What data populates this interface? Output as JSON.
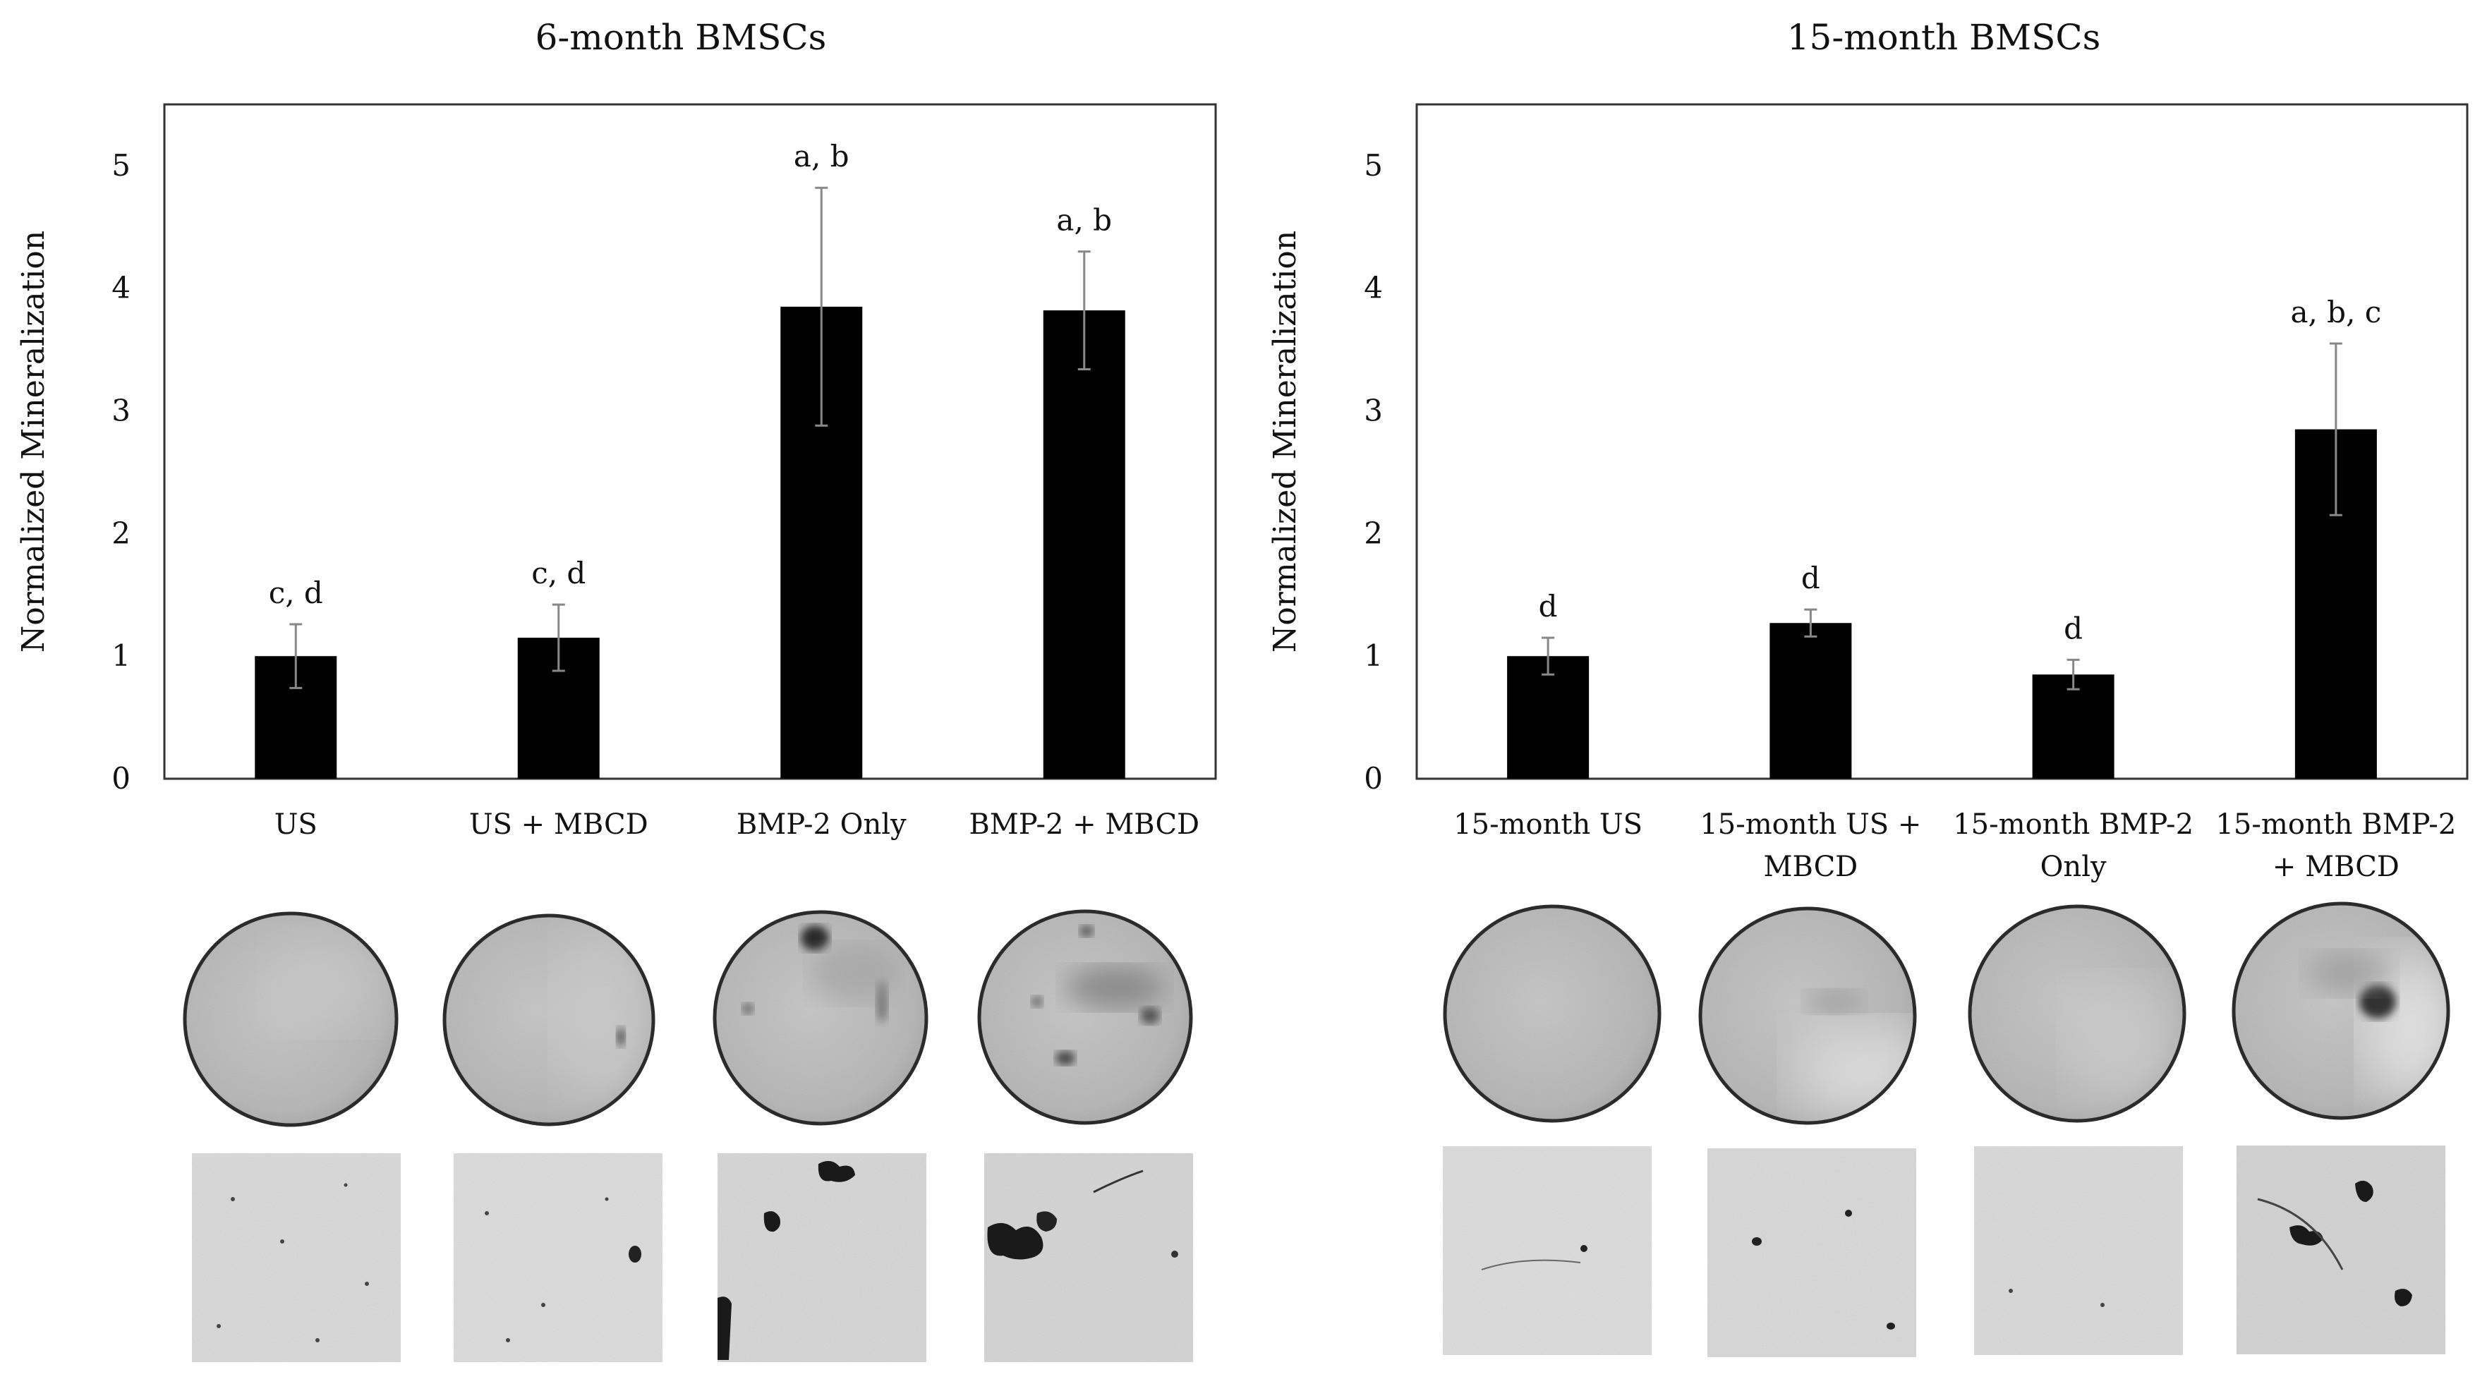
{
  "chart_data": [
    {
      "type": "bar",
      "title": "6-month BMSCs",
      "ylabel": "Normalized Mineralization",
      "xlabel": "",
      "ylim": [
        0,
        5.5
      ],
      "yticks": [
        "0",
        "1",
        "2",
        "3",
        "4",
        "5"
      ],
      "grid": false,
      "bar_color": "#000000",
      "categories": [
        [
          "US"
        ],
        [
          "US + MBCD"
        ],
        [
          "BMP-2 Only"
        ],
        [
          "BMP-2 + MBCD"
        ]
      ],
      "values": [
        1.0,
        1.15,
        3.85,
        3.82
      ],
      "errors": [
        0.26,
        0.27,
        0.97,
        0.48
      ],
      "annotations": [
        "c, d",
        "c, d",
        "a, b",
        "a, b"
      ]
    },
    {
      "type": "bar",
      "title": "15-month BMSCs",
      "ylabel": "Normalized Mineralization",
      "xlabel": "",
      "ylim": [
        0,
        5.5
      ],
      "yticks": [
        "0",
        "1",
        "2",
        "3",
        "4",
        "5"
      ],
      "grid": false,
      "bar_color": "#000000",
      "categories": [
        [
          "15-month US"
        ],
        [
          "15-month US +",
          "MBCD"
        ],
        [
          "15-month BMP-2",
          "Only"
        ],
        [
          "15-month BMP-2",
          "+ MBCD"
        ]
      ],
      "values": [
        1.0,
        1.27,
        0.85,
        2.85
      ],
      "errors": [
        0.15,
        0.11,
        0.12,
        0.7
      ],
      "annotations": [
        "d",
        "d",
        "d",
        "a, b, c"
      ]
    }
  ],
  "well_images": [
    "whole-well-scan",
    "whole-well-scan",
    "whole-well-scan",
    "whole-well-scan",
    "whole-well-scan",
    "whole-well-scan",
    "whole-well-scan",
    "whole-well-scan"
  ],
  "micrographs": [
    "micrograph",
    "micrograph",
    "micrograph",
    "micrograph",
    "micrograph",
    "micrograph",
    "micrograph",
    "micrograph"
  ]
}
